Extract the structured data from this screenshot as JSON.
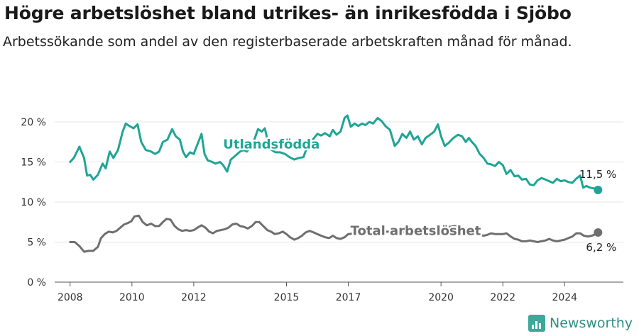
{
  "title": "Högre arbetslöshet bland utrikes- än inrikesfödda i Sjöbo",
  "subtitle": "Arbetssökande som andel av den registerbaserade arbetskraften månad för månad.",
  "brand": {
    "name": "Newsworthy",
    "icon": "bar-chart-logo-icon"
  },
  "chart_data": {
    "type": "line",
    "xlabel": "",
    "ylabel": "",
    "xlim": [
      2007.5,
      2025.9
    ],
    "ylim": [
      0,
      22
    ],
    "yticks": [
      0,
      5,
      10,
      15,
      20
    ],
    "ytick_labels": [
      "0 %",
      "5 %",
      "10 %",
      "15 %",
      "20 %"
    ],
    "xticks": [
      2008,
      2010,
      2012,
      2015,
      2017,
      2020,
      2022,
      2024
    ],
    "xtick_labels": [
      "2008",
      "2010",
      "2012",
      "2015",
      "2017",
      "2020",
      "2022",
      "2024"
    ],
    "grid": "horizontal",
    "legend": "none",
    "series": [
      {
        "name": "Utlandsfödda",
        "color": "#1fa596",
        "end_label": "11,5 %",
        "points": [
          [
            2008.0,
            15.0
          ],
          [
            2008.12,
            15.5
          ],
          [
            2008.3,
            16.9
          ],
          [
            2008.45,
            15.5
          ],
          [
            2008.55,
            13.3
          ],
          [
            2008.65,
            13.4
          ],
          [
            2008.75,
            12.8
          ],
          [
            2008.9,
            13.4
          ],
          [
            2009.05,
            14.8
          ],
          [
            2009.15,
            14.2
          ],
          [
            2009.28,
            16.3
          ],
          [
            2009.4,
            15.5
          ],
          [
            2009.55,
            16.5
          ],
          [
            2009.7,
            18.8
          ],
          [
            2009.8,
            19.8
          ],
          [
            2009.92,
            19.5
          ],
          [
            2010.05,
            19.2
          ],
          [
            2010.18,
            19.7
          ],
          [
            2010.3,
            17.5
          ],
          [
            2010.45,
            16.5
          ],
          [
            2010.62,
            16.3
          ],
          [
            2010.75,
            16.0
          ],
          [
            2010.88,
            16.3
          ],
          [
            2011.0,
            17.5
          ],
          [
            2011.15,
            17.8
          ],
          [
            2011.3,
            19.1
          ],
          [
            2011.42,
            18.2
          ],
          [
            2011.55,
            17.8
          ],
          [
            2011.65,
            16.3
          ],
          [
            2011.75,
            15.6
          ],
          [
            2011.88,
            16.2
          ],
          [
            2012.0,
            16.0
          ],
          [
            2012.12,
            17.2
          ],
          [
            2012.25,
            18.5
          ],
          [
            2012.35,
            16.0
          ],
          [
            2012.45,
            15.2
          ],
          [
            2012.6,
            15.0
          ],
          [
            2012.7,
            14.8
          ],
          [
            2012.85,
            15.0
          ],
          [
            2012.95,
            14.6
          ],
          [
            2013.08,
            13.8
          ],
          [
            2013.2,
            15.3
          ],
          [
            2013.35,
            15.8
          ],
          [
            2013.5,
            16.3
          ],
          [
            2013.62,
            16.5
          ],
          [
            2013.72,
            16.3
          ],
          [
            2013.85,
            17.0
          ],
          [
            2013.95,
            17.7
          ],
          [
            2014.08,
            19.1
          ],
          [
            2014.2,
            18.8
          ],
          [
            2014.3,
            19.2
          ],
          [
            2014.4,
            17.5
          ],
          [
            2014.52,
            16.5
          ],
          [
            2014.65,
            16.2
          ],
          [
            2014.8,
            16.2
          ],
          [
            2014.95,
            16.0
          ],
          [
            2015.1,
            15.6
          ],
          [
            2015.25,
            15.3
          ],
          [
            2015.4,
            15.5
          ],
          [
            2015.55,
            15.6
          ],
          [
            2015.7,
            17.2
          ],
          [
            2015.85,
            17.8
          ],
          [
            2016.0,
            18.5
          ],
          [
            2016.12,
            18.3
          ],
          [
            2016.25,
            18.6
          ],
          [
            2016.4,
            18.2
          ],
          [
            2016.5,
            19.0
          ],
          [
            2016.62,
            18.4
          ],
          [
            2016.75,
            18.8
          ],
          [
            2016.88,
            20.5
          ],
          [
            2016.97,
            20.8
          ],
          [
            2017.08,
            19.4
          ],
          [
            2017.2,
            19.8
          ],
          [
            2017.32,
            19.5
          ],
          [
            2017.45,
            19.8
          ],
          [
            2017.55,
            19.6
          ],
          [
            2017.68,
            20.0
          ],
          [
            2017.8,
            19.8
          ],
          [
            2017.95,
            20.5
          ],
          [
            2018.08,
            20.1
          ],
          [
            2018.2,
            19.5
          ],
          [
            2018.35,
            19.0
          ],
          [
            2018.5,
            17.0
          ],
          [
            2018.62,
            17.5
          ],
          [
            2018.75,
            18.5
          ],
          [
            2018.88,
            18.0
          ],
          [
            2019.0,
            18.8
          ],
          [
            2019.12,
            17.8
          ],
          [
            2019.25,
            18.2
          ],
          [
            2019.38,
            17.2
          ],
          [
            2019.5,
            18.0
          ],
          [
            2019.65,
            18.4
          ],
          [
            2019.78,
            18.8
          ],
          [
            2019.9,
            19.7
          ],
          [
            2020.0,
            18.2
          ],
          [
            2020.12,
            17.0
          ],
          [
            2020.25,
            17.4
          ],
          [
            2020.4,
            18.0
          ],
          [
            2020.55,
            18.4
          ],
          [
            2020.68,
            18.2
          ],
          [
            2020.8,
            17.5
          ],
          [
            2020.9,
            18.0
          ],
          [
            2021.0,
            17.5
          ],
          [
            2021.12,
            17.0
          ],
          [
            2021.25,
            16.0
          ],
          [
            2021.38,
            15.5
          ],
          [
            2021.5,
            14.8
          ],
          [
            2021.62,
            14.7
          ],
          [
            2021.75,
            14.5
          ],
          [
            2021.87,
            15.0
          ],
          [
            2022.0,
            14.6
          ],
          [
            2022.12,
            13.5
          ],
          [
            2022.25,
            14.0
          ],
          [
            2022.38,
            13.2
          ],
          [
            2022.5,
            13.3
          ],
          [
            2022.62,
            12.8
          ],
          [
            2022.75,
            12.9
          ],
          [
            2022.87,
            12.2
          ],
          [
            2023.0,
            12.1
          ],
          [
            2023.12,
            12.7
          ],
          [
            2023.25,
            13.0
          ],
          [
            2023.38,
            12.8
          ],
          [
            2023.5,
            12.6
          ],
          [
            2023.62,
            12.4
          ],
          [
            2023.75,
            12.9
          ],
          [
            2023.87,
            12.6
          ],
          [
            2024.0,
            12.7
          ],
          [
            2024.12,
            12.5
          ],
          [
            2024.25,
            12.4
          ],
          [
            2024.37,
            12.9
          ],
          [
            2024.5,
            13.3
          ],
          [
            2024.6,
            11.8
          ],
          [
            2024.7,
            12.0
          ],
          [
            2024.82,
            11.8
          ],
          [
            2024.95,
            11.7
          ],
          [
            2025.08,
            11.5
          ]
        ]
      },
      {
        "name": "Total arbetslöshet",
        "color": "#6f6f6f",
        "end_label": "6,2 %",
        "points": [
          [
            2008.0,
            5.0
          ],
          [
            2008.15,
            5.0
          ],
          [
            2008.3,
            4.5
          ],
          [
            2008.45,
            3.8
          ],
          [
            2008.6,
            3.9
          ],
          [
            2008.75,
            3.9
          ],
          [
            2008.9,
            4.4
          ],
          [
            2009.0,
            5.5
          ],
          [
            2009.12,
            6.0
          ],
          [
            2009.25,
            6.3
          ],
          [
            2009.38,
            6.2
          ],
          [
            2009.5,
            6.4
          ],
          [
            2009.62,
            6.8
          ],
          [
            2009.75,
            7.2
          ],
          [
            2009.88,
            7.4
          ],
          [
            2009.98,
            7.6
          ],
          [
            2010.08,
            8.2
          ],
          [
            2010.22,
            8.3
          ],
          [
            2010.35,
            7.5
          ],
          [
            2010.48,
            7.1
          ],
          [
            2010.62,
            7.3
          ],
          [
            2010.75,
            7.0
          ],
          [
            2010.88,
            7.0
          ],
          [
            2011.0,
            7.5
          ],
          [
            2011.12,
            7.9
          ],
          [
            2011.25,
            7.8
          ],
          [
            2011.38,
            7.0
          ],
          [
            2011.5,
            6.6
          ],
          [
            2011.62,
            6.4
          ],
          [
            2011.75,
            6.5
          ],
          [
            2011.88,
            6.4
          ],
          [
            2012.0,
            6.5
          ],
          [
            2012.12,
            6.8
          ],
          [
            2012.25,
            7.1
          ],
          [
            2012.38,
            6.8
          ],
          [
            2012.5,
            6.3
          ],
          [
            2012.62,
            6.1
          ],
          [
            2012.75,
            6.4
          ],
          [
            2012.88,
            6.5
          ],
          [
            2013.0,
            6.6
          ],
          [
            2013.12,
            6.8
          ],
          [
            2013.25,
            7.2
          ],
          [
            2013.38,
            7.3
          ],
          [
            2013.5,
            7.0
          ],
          [
            2013.62,
            6.9
          ],
          [
            2013.75,
            6.7
          ],
          [
            2013.88,
            7.0
          ],
          [
            2014.0,
            7.5
          ],
          [
            2014.12,
            7.5
          ],
          [
            2014.25,
            7.0
          ],
          [
            2014.38,
            6.5
          ],
          [
            2014.5,
            6.3
          ],
          [
            2014.62,
            6.0
          ],
          [
            2014.75,
            6.1
          ],
          [
            2014.88,
            6.3
          ],
          [
            2015.0,
            6.0
          ],
          [
            2015.12,
            5.6
          ],
          [
            2015.25,
            5.3
          ],
          [
            2015.38,
            5.5
          ],
          [
            2015.5,
            5.8
          ],
          [
            2015.62,
            6.2
          ],
          [
            2015.75,
            6.4
          ],
          [
            2015.88,
            6.2
          ],
          [
            2016.0,
            6.0
          ],
          [
            2016.12,
            5.8
          ],
          [
            2016.25,
            5.6
          ],
          [
            2016.38,
            5.5
          ],
          [
            2016.5,
            5.8
          ],
          [
            2016.62,
            5.5
          ],
          [
            2016.75,
            5.4
          ],
          [
            2016.88,
            5.6
          ],
          [
            2017.0,
            6.0
          ],
          [
            2017.25,
            6.1
          ],
          [
            2017.5,
            6.2
          ],
          [
            2017.75,
            6.2
          ],
          [
            2018.0,
            6.3
          ],
          [
            2018.25,
            6.3
          ],
          [
            2018.5,
            6.2
          ],
          [
            2018.75,
            6.3
          ],
          [
            2019.0,
            6.4
          ],
          [
            2019.25,
            6.4
          ],
          [
            2019.5,
            6.5
          ],
          [
            2019.75,
            6.6
          ],
          [
            2020.0,
            6.6
          ],
          [
            2020.15,
            6.9
          ],
          [
            2020.3,
            6.9
          ],
          [
            2020.45,
            7.0
          ],
          [
            2020.6,
            6.9
          ],
          [
            2020.75,
            6.8
          ],
          [
            2020.88,
            6.6
          ],
          [
            2021.0,
            6.2
          ],
          [
            2021.12,
            6.0
          ],
          [
            2021.25,
            5.9
          ],
          [
            2021.38,
            5.8
          ],
          [
            2021.5,
            5.9
          ],
          [
            2021.62,
            6.1
          ],
          [
            2021.75,
            6.0
          ],
          [
            2021.88,
            6.0
          ],
          [
            2022.0,
            6.0
          ],
          [
            2022.12,
            6.1
          ],
          [
            2022.25,
            5.7
          ],
          [
            2022.38,
            5.4
          ],
          [
            2022.5,
            5.3
          ],
          [
            2022.62,
            5.1
          ],
          [
            2022.75,
            5.1
          ],
          [
            2022.88,
            5.2
          ],
          [
            2023.0,
            5.1
          ],
          [
            2023.12,
            5.0
          ],
          [
            2023.25,
            5.1
          ],
          [
            2023.38,
            5.2
          ],
          [
            2023.5,
            5.4
          ],
          [
            2023.62,
            5.2
          ],
          [
            2023.75,
            5.1
          ],
          [
            2023.88,
            5.2
          ],
          [
            2024.0,
            5.3
          ],
          [
            2024.12,
            5.5
          ],
          [
            2024.25,
            5.7
          ],
          [
            2024.38,
            6.1
          ],
          [
            2024.5,
            6.1
          ],
          [
            2024.62,
            5.8
          ],
          [
            2024.75,
            5.7
          ],
          [
            2024.88,
            5.8
          ],
          [
            2025.0,
            6.0
          ],
          [
            2025.08,
            6.2
          ]
        ]
      }
    ],
    "annotations": [
      {
        "series": "Utlandsfödda",
        "text": "Utlandsfödda",
        "at_x": 2012.95,
        "at_y": 16.7
      },
      {
        "series": "Total arbetslöshet",
        "text": "Total arbetslöshet",
        "at_x": 2017.07,
        "at_y": 5.9
      }
    ]
  }
}
